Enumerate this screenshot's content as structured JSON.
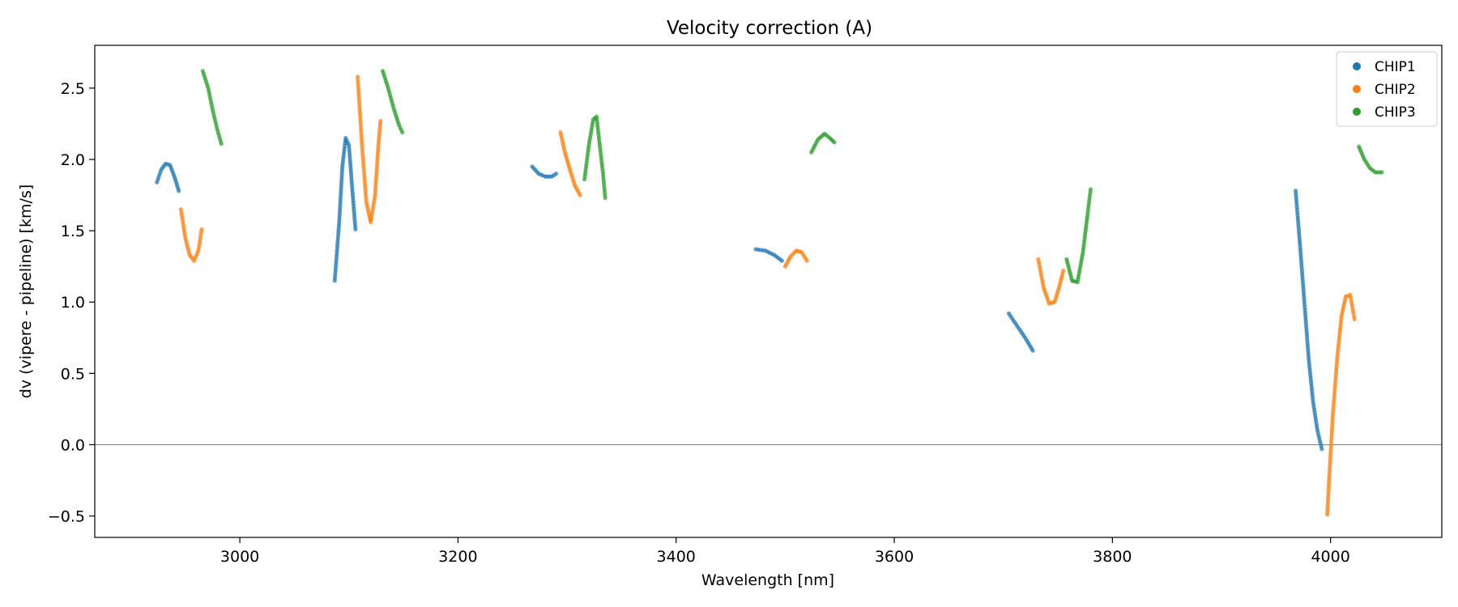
{
  "chart_data": {
    "type": "scatter",
    "title": "Velocity correction (A)",
    "xlabel": "Wavelength [nm]",
    "ylabel": "dv (vipere - pipeline) [km/s]",
    "xlim": [
      2867,
      4102
    ],
    "ylim": [
      -0.65,
      2.8
    ],
    "xticks": [
      3000,
      3200,
      3400,
      3600,
      3800,
      4000
    ],
    "yticks": [
      -0.5,
      0.0,
      0.5,
      1.0,
      1.5,
      2.0,
      2.5
    ],
    "xtick_labels": [
      "3000",
      "3200",
      "3400",
      "3600",
      "3800",
      "4000"
    ],
    "ytick_labels": [
      "−0.5",
      "0.0",
      "0.5",
      "1.0",
      "1.5",
      "2.0",
      "2.5"
    ],
    "hline": 0.0,
    "grid": false,
    "legend_position": "top-right",
    "series": [
      {
        "name": "CHIP1",
        "color": "#1f77b4",
        "segments": [
          [
            [
              2924,
              1.84
            ],
            [
              2928,
              1.93
            ],
            [
              2932,
              1.97
            ],
            [
              2936,
              1.96
            ],
            [
              2940,
              1.88
            ],
            [
              2944,
              1.78
            ]
          ],
          [
            [
              3087,
              1.15
            ],
            [
              3091,
              1.55
            ],
            [
              3094,
              1.95
            ],
            [
              3097,
              2.15
            ],
            [
              3100,
              2.1
            ],
            [
              3103,
              1.8
            ],
            [
              3106,
              1.51
            ]
          ],
          [
            [
              3268,
              1.95
            ],
            [
              3274,
              1.9
            ],
            [
              3280,
              1.88
            ],
            [
              3286,
              1.88
            ],
            [
              3290,
              1.9
            ]
          ],
          [
            [
              3473,
              1.37
            ],
            [
              3482,
              1.36
            ],
            [
              3490,
              1.33
            ],
            [
              3497,
              1.29
            ]
          ],
          [
            [
              3705,
              0.92
            ],
            [
              3712,
              0.84
            ],
            [
              3720,
              0.75
            ],
            [
              3727,
              0.66
            ]
          ],
          [
            [
              3968,
              1.78
            ],
            [
              3972,
              1.4
            ],
            [
              3976,
              1.0
            ],
            [
              3980,
              0.6
            ],
            [
              3984,
              0.3
            ],
            [
              3988,
              0.1
            ],
            [
              3992,
              -0.03
            ]
          ]
        ]
      },
      {
        "name": "CHIP2",
        "color": "#ff7f0e",
        "segments": [
          [
            [
              2946,
              1.65
            ],
            [
              2950,
              1.45
            ],
            [
              2954,
              1.33
            ],
            [
              2958,
              1.29
            ],
            [
              2962,
              1.36
            ],
            [
              2965,
              1.51
            ]
          ],
          [
            [
              3108,
              2.58
            ],
            [
              3112,
              2.1
            ],
            [
              3116,
              1.7
            ],
            [
              3120,
              1.56
            ],
            [
              3124,
              1.75
            ],
            [
              3127,
              2.1
            ],
            [
              3129,
              2.27
            ]
          ],
          [
            [
              3294,
              2.19
            ],
            [
              3298,
              2.05
            ],
            [
              3303,
              1.92
            ],
            [
              3307,
              1.82
            ],
            [
              3312,
              1.75
            ]
          ],
          [
            [
              3500,
              1.25
            ],
            [
              3505,
              1.32
            ],
            [
              3510,
              1.36
            ],
            [
              3515,
              1.35
            ],
            [
              3520,
              1.29
            ]
          ],
          [
            [
              3732,
              1.3
            ],
            [
              3737,
              1.1
            ],
            [
              3742,
              0.99
            ],
            [
              3747,
              1.0
            ],
            [
              3751,
              1.1
            ],
            [
              3755,
              1.22
            ]
          ],
          [
            [
              3997,
              -0.49
            ],
            [
              3999,
              -0.2
            ],
            [
              4002,
              0.2
            ],
            [
              4006,
              0.6
            ],
            [
              4010,
              0.9
            ],
            [
              4014,
              1.04
            ],
            [
              4018,
              1.05
            ],
            [
              4022,
              0.88
            ]
          ]
        ]
      },
      {
        "name": "CHIP3",
        "color": "#2ca02c",
        "segments": [
          [
            [
              2966,
              2.62
            ],
            [
              2971,
              2.5
            ],
            [
              2975,
              2.35
            ],
            [
              2979,
              2.22
            ],
            [
              2983,
              2.11
            ]
          ],
          [
            [
              3131,
              2.62
            ],
            [
              3136,
              2.5
            ],
            [
              3141,
              2.36
            ],
            [
              3146,
              2.24
            ],
            [
              3149,
              2.19
            ]
          ],
          [
            [
              3316,
              1.86
            ],
            [
              3320,
              2.1
            ],
            [
              3324,
              2.28
            ],
            [
              3327,
              2.3
            ],
            [
              3330,
              2.1
            ],
            [
              3333,
              1.9
            ],
            [
              3335,
              1.73
            ]
          ],
          [
            [
              3524,
              2.05
            ],
            [
              3530,
              2.14
            ],
            [
              3536,
              2.18
            ],
            [
              3541,
              2.15
            ],
            [
              3545,
              2.12
            ]
          ],
          [
            [
              3758,
              1.3
            ],
            [
              3763,
              1.15
            ],
            [
              3768,
              1.14
            ],
            [
              3773,
              1.35
            ],
            [
              3777,
              1.6
            ],
            [
              3780,
              1.79
            ]
          ],
          [
            [
              4026,
              2.09
            ],
            [
              4031,
              2.0
            ],
            [
              4036,
              1.94
            ],
            [
              4041,
              1.91
            ],
            [
              4047,
              1.91
            ]
          ]
        ]
      }
    ]
  }
}
